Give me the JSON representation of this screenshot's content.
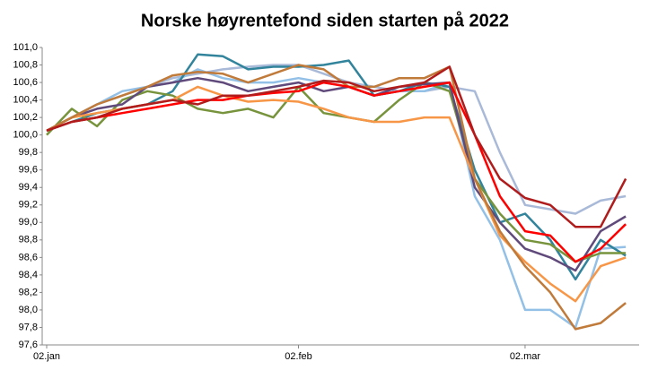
{
  "chart_data": {
    "type": "line",
    "title": "Norske høyrentefond siden starten på 2022",
    "categories": [
      "02.jan",
      null,
      null,
      null,
      null,
      null,
      null,
      null,
      null,
      null,
      "02.feb",
      null,
      null,
      null,
      null,
      null,
      null,
      null,
      null,
      "02.mar",
      null,
      null,
      null,
      null
    ],
    "ylim": [
      97.6,
      101.0
    ],
    "yticks": [
      {
        "value": 97.6,
        "label": "97,6"
      },
      {
        "value": 97.8,
        "label": "97,8"
      },
      {
        "value": 98.0,
        "label": "98,0"
      },
      {
        "value": 98.2,
        "label": "98,2"
      },
      {
        "value": 98.4,
        "label": "98,4"
      },
      {
        "value": 98.6,
        "label": "98,6"
      },
      {
        "value": 98.8,
        "label": "98,8"
      },
      {
        "value": 99.0,
        "label": "99,0"
      },
      {
        "value": 99.2,
        "label": "99,2"
      },
      {
        "value": 99.4,
        "label": "99,4"
      },
      {
        "value": 99.6,
        "label": "99,6"
      },
      {
        "value": 99.8,
        "label": "99,8"
      },
      {
        "value": 100.0,
        "label": "100,0"
      },
      {
        "value": 100.2,
        "label": "100,2"
      },
      {
        "value": 100.4,
        "label": "100,4"
      },
      {
        "value": 100.6,
        "label": "100,6"
      },
      {
        "value": 100.8,
        "label": "100,8"
      },
      {
        "value": 101.0,
        "label": "101,0"
      }
    ],
    "grid": false,
    "series": [
      {
        "color": "#a9b9d8",
        "values": [
          100.05,
          100.2,
          100.35,
          100.45,
          100.55,
          100.65,
          100.7,
          100.75,
          100.78,
          100.8,
          100.8,
          100.7,
          100.6,
          100.55,
          100.5,
          100.5,
          100.55,
          100.5,
          99.8,
          99.2,
          99.15,
          99.1,
          99.25,
          99.3
        ]
      },
      {
        "color": "#93c0e6",
        "values": [
          100.05,
          100.2,
          100.35,
          100.5,
          100.55,
          100.6,
          100.75,
          100.65,
          100.6,
          100.6,
          100.65,
          100.6,
          100.55,
          100.45,
          100.5,
          100.5,
          100.6,
          99.3,
          98.8,
          98.0,
          98.0,
          97.8,
          98.7,
          98.72
        ]
      },
      {
        "color": "#31849b",
        "values": [
          100.05,
          100.15,
          100.25,
          100.3,
          100.35,
          100.5,
          100.92,
          100.9,
          100.75,
          100.78,
          100.78,
          100.8,
          100.85,
          100.45,
          100.5,
          100.6,
          100.55,
          99.6,
          99.0,
          99.1,
          98.8,
          98.35,
          98.8,
          98.62
        ]
      },
      {
        "color": "#77933c",
        "values": [
          100.0,
          100.3,
          100.1,
          100.4,
          100.5,
          100.45,
          100.3,
          100.25,
          100.3,
          100.2,
          100.55,
          100.25,
          100.2,
          100.15,
          100.4,
          100.6,
          100.5,
          99.5,
          99.1,
          98.8,
          98.75,
          98.55,
          98.65,
          98.65
        ]
      },
      {
        "color": "#604a7b",
        "values": [
          100.05,
          100.2,
          100.3,
          100.35,
          100.55,
          100.6,
          100.65,
          100.6,
          100.5,
          100.55,
          100.6,
          100.5,
          100.55,
          100.45,
          100.55,
          100.58,
          100.6,
          99.4,
          99.0,
          98.7,
          98.6,
          98.45,
          98.9,
          99.07
        ]
      },
      {
        "color": "#f79646",
        "values": [
          100.05,
          100.2,
          100.25,
          100.3,
          100.35,
          100.4,
          100.55,
          100.45,
          100.38,
          100.4,
          100.38,
          100.3,
          100.2,
          100.15,
          100.15,
          100.2,
          100.2,
          99.5,
          98.85,
          98.55,
          98.3,
          98.1,
          98.5,
          98.6
        ]
      },
      {
        "color": "#c07a3a",
        "values": [
          100.05,
          100.2,
          100.35,
          100.45,
          100.55,
          100.68,
          100.72,
          100.7,
          100.6,
          100.7,
          100.8,
          100.75,
          100.55,
          100.55,
          100.65,
          100.65,
          100.78,
          99.5,
          98.9,
          98.5,
          98.2,
          97.78,
          97.85,
          98.08
        ]
      },
      {
        "color": "#ff0000",
        "values": [
          100.05,
          100.15,
          100.2,
          100.25,
          100.3,
          100.35,
          100.4,
          100.4,
          100.45,
          100.48,
          100.5,
          100.6,
          100.55,
          100.45,
          100.5,
          100.55,
          100.6,
          100.0,
          99.3,
          98.9,
          98.85,
          98.55,
          98.7,
          98.98
        ]
      },
      {
        "color": "#b01c1c",
        "values": [
          100.05,
          100.15,
          100.2,
          100.3,
          100.35,
          100.4,
          100.35,
          100.45,
          100.45,
          100.5,
          100.55,
          100.62,
          100.6,
          100.5,
          100.55,
          100.6,
          100.78,
          100.0,
          99.5,
          99.28,
          99.2,
          98.95,
          98.95,
          99.5
        ]
      }
    ]
  }
}
